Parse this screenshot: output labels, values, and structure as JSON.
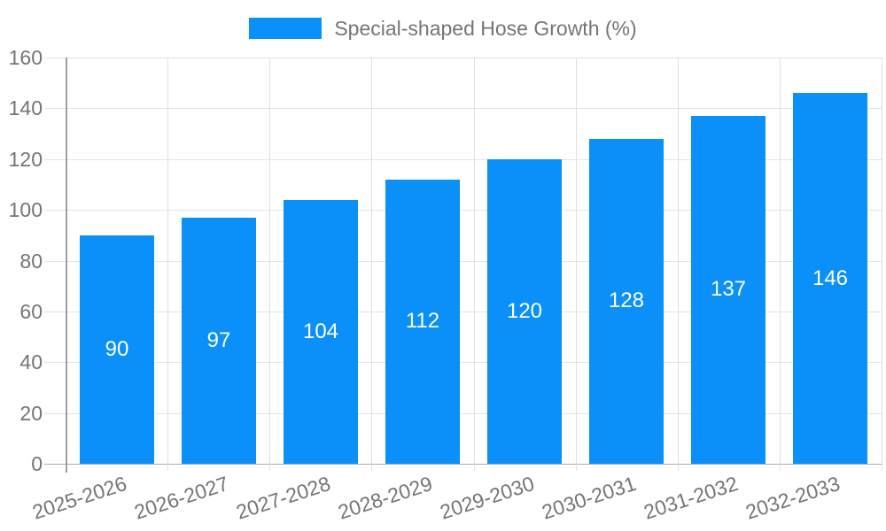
{
  "chart_data": {
    "type": "bar",
    "title": "",
    "legend": {
      "label": "Special-shaped Hose Growth (%)",
      "position": "top-center"
    },
    "categories": [
      "2025-2026",
      "2026-2027",
      "2027-2028",
      "2028-2029",
      "2029-2030",
      "2030-2031",
      "2031-2032",
      "2032-2033"
    ],
    "values": [
      90,
      97,
      104,
      112,
      120,
      128,
      137,
      146
    ],
    "xlabel": "",
    "ylabel": "",
    "ylim": [
      0,
      160
    ],
    "yticks": [
      0,
      20,
      40,
      60,
      80,
      100,
      120,
      140,
      160
    ],
    "grid": true,
    "bar_value_labels": true,
    "x_label_rotation_deg": -18,
    "colors": {
      "bar": "#0a90f8",
      "bar_label": "#ffffff",
      "axis_text": "#757575",
      "legend_text": "#757575",
      "grid_h": "#e4e4e4",
      "grid_v": "#e0e0e0",
      "axis_line": "#9e9e9e",
      "baseline": "#aaaaaa",
      "background": "#ffffff"
    }
  }
}
